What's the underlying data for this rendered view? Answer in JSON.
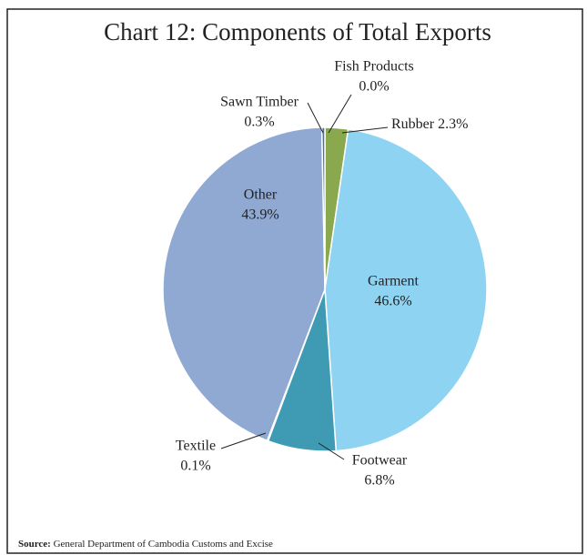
{
  "chart_data": {
    "type": "pie",
    "title": "Chart 12: Components of Total Exports",
    "categories": [
      "Fish Products",
      "Rubber",
      "Garment",
      "Footwear",
      "Textile",
      "Other",
      "Sawn Timber"
    ],
    "values": [
      0.0,
      2.3,
      46.6,
      6.8,
      0.1,
      43.9,
      0.3
    ],
    "value_labels": [
      "0.0%",
      "2.3%",
      "46.6%",
      "6.8%",
      "0.1%",
      "43.9%",
      "0.3%"
    ],
    "colors": [
      "#2e5f8a",
      "#8aa84e",
      "#8fd3f2",
      "#3e9bb3",
      "#d9823b",
      "#90a9d2",
      "#4a6fa5"
    ],
    "source_label": "Source:",
    "source": "General Department of Cambodia Customs and Excise"
  }
}
